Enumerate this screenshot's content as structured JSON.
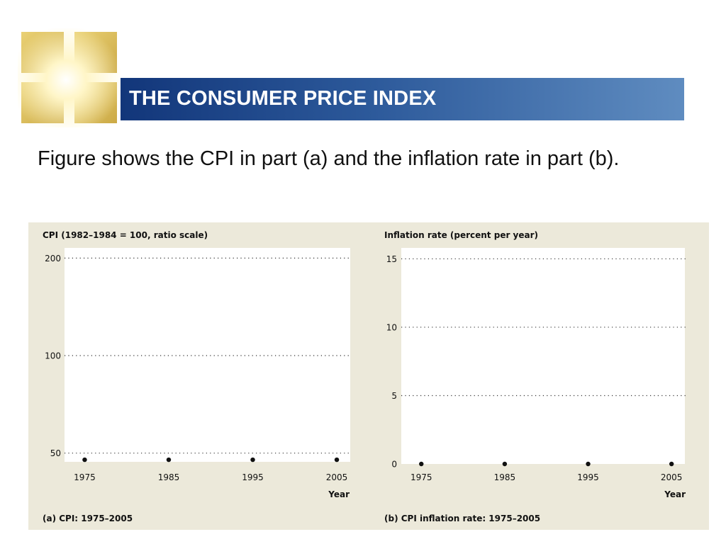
{
  "slide": {
    "title": "THE CONSUMER PRICE INDEX",
    "body": "Figure shows the CPI in part (a) and the inflation rate in part (b)."
  },
  "colors": {
    "title_bar_dark": "#12367a",
    "title_bar_light": "#5f8cc0",
    "figure_background": "#ece9da",
    "plot_background": "#ffffff",
    "logo_gold": "#d9b84a"
  },
  "chart_data": [
    {
      "type": "scatter",
      "title": "CPI (1982–1984 = 100, ratio scale)",
      "caption": "(a) CPI: 1975–2005",
      "xlabel": "Year",
      "ylabel": "",
      "y_scale": "log",
      "ylim": [
        47,
        215
      ],
      "xlim": [
        1972.6,
        2006.6
      ],
      "yticks": [
        {
          "value": 50,
          "label": "50"
        },
        {
          "value": 100,
          "label": "100"
        },
        {
          "value": 200,
          "label": "200"
        }
      ],
      "xticks": [
        {
          "value": 1975,
          "label": "1975"
        },
        {
          "value": 1985,
          "label": "1985"
        },
        {
          "value": 1995,
          "label": "1995"
        },
        {
          "value": 2005,
          "label": "2005"
        }
      ],
      "grid": "dotted horizontal",
      "points": [
        {
          "x": 1975,
          "y": 47.7
        },
        {
          "x": 1985,
          "y": 47.7
        },
        {
          "x": 1995,
          "y": 47.7
        },
        {
          "x": 2005,
          "y": 47.7
        }
      ]
    },
    {
      "type": "scatter",
      "title": "Inflation rate (percent per year)",
      "caption": "(b) CPI inflation rate: 1975–2005",
      "xlabel": "Year",
      "ylabel": "",
      "ylim": [
        0,
        15.8
      ],
      "xlim": [
        1972.6,
        2006.6
      ],
      "yticks": [
        {
          "value": 0,
          "label": "0"
        },
        {
          "value": 5,
          "label": "5"
        },
        {
          "value": 10,
          "label": "10"
        },
        {
          "value": 15,
          "label": "15"
        }
      ],
      "xticks": [
        {
          "value": 1975,
          "label": "1975"
        },
        {
          "value": 1985,
          "label": "1985"
        },
        {
          "value": 1995,
          "label": "1995"
        },
        {
          "value": 2005,
          "label": "2005"
        }
      ],
      "grid": "dotted horizontal",
      "points": [
        {
          "x": 1975,
          "y": 0
        },
        {
          "x": 1985,
          "y": 0
        },
        {
          "x": 1995,
          "y": 0
        },
        {
          "x": 2005,
          "y": 0
        }
      ]
    }
  ]
}
